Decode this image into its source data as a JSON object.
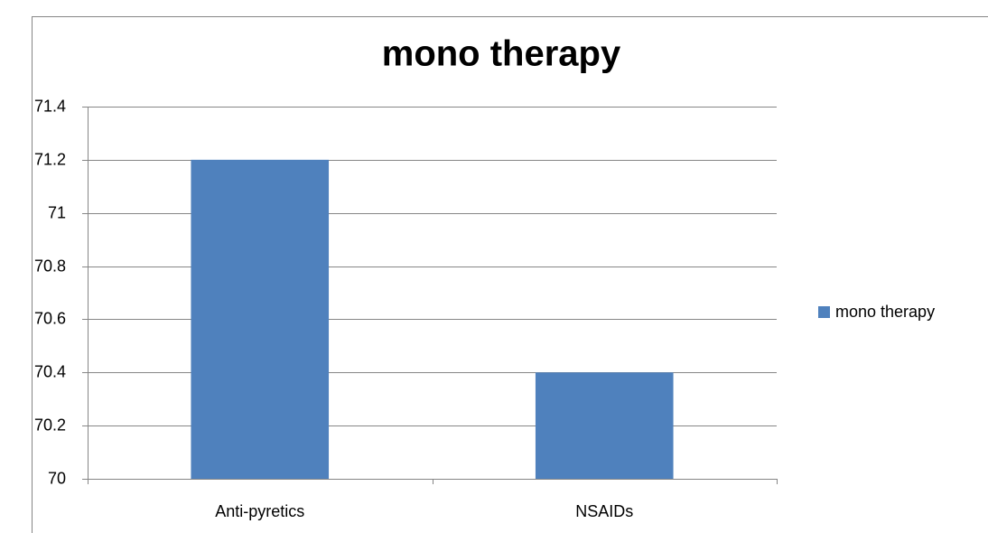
{
  "chart_data": {
    "type": "bar",
    "title": "mono therapy",
    "categories": [
      "Anti-pyretics",
      "NSAIDs"
    ],
    "series": [
      {
        "name": "mono therapy",
        "color": "#4f81bd",
        "values": [
          71.2,
          70.4
        ]
      }
    ],
    "ylim": [
      70,
      71.4
    ],
    "yticks": [
      70,
      70.2,
      70.4,
      70.6,
      70.8,
      71,
      71.2,
      71.4
    ],
    "grid": true,
    "legend": "right"
  }
}
